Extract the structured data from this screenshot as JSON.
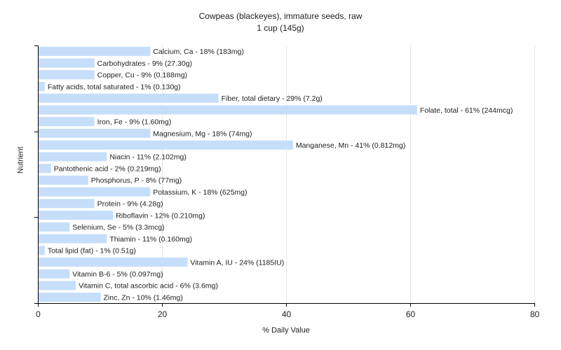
{
  "chart_data": {
    "type": "bar",
    "orientation": "horizontal",
    "title": "Cowpeas (blackeyes), immature seeds, raw",
    "subtitle": "1 cup (145g)",
    "xlabel": "% Daily Value",
    "ylabel": "Nutrient",
    "xlim": [
      0,
      80
    ],
    "xticks": [
      0,
      20,
      40,
      60,
      80
    ],
    "grid": "vertical",
    "bar_color": "#c6defa",
    "bars": [
      {
        "name": "Calcium, Ca",
        "value": 18,
        "label": "Calcium, Ca - 18% (183mg)"
      },
      {
        "name": "Carbohydrates",
        "value": 9,
        "label": "Carbohydrates - 9% (27.30g)"
      },
      {
        "name": "Copper, Cu",
        "value": 9,
        "label": "Copper, Cu - 9% (0.188mg)"
      },
      {
        "name": "Fatty acids, total saturated",
        "value": 1,
        "label": "Fatty acids, total saturated - 1% (0.130g)"
      },
      {
        "name": "Fiber, total dietary",
        "value": 29,
        "label": "Fiber, total dietary - 29% (7.2g)"
      },
      {
        "name": "Folate, total",
        "value": 61,
        "label": "Folate, total - 61% (244mcg)"
      },
      {
        "name": "Iron, Fe",
        "value": 9,
        "label": "Iron, Fe - 9% (1.60mg)"
      },
      {
        "name": "Magnesium, Mg",
        "value": 18,
        "label": "Magnesium, Mg - 18% (74mg)"
      },
      {
        "name": "Manganese, Mn",
        "value": 41,
        "label": "Manganese, Mn - 41% (0.812mg)"
      },
      {
        "name": "Niacin",
        "value": 11,
        "label": "Niacin - 11% (2.102mg)"
      },
      {
        "name": "Pantothenic acid",
        "value": 2,
        "label": "Pantothenic acid - 2% (0.219mg)"
      },
      {
        "name": "Phosphorus, P",
        "value": 8,
        "label": "Phosphorus, P - 8% (77mg)"
      },
      {
        "name": "Potassium, K",
        "value": 18,
        "label": "Potassium, K - 18% (625mg)"
      },
      {
        "name": "Protein",
        "value": 9,
        "label": "Protein - 9% (4.28g)"
      },
      {
        "name": "Riboflavin",
        "value": 12,
        "label": "Riboflavin - 12% (0.210mg)"
      },
      {
        "name": "Selenium, Se",
        "value": 5,
        "label": "Selenium, Se - 5% (3.3mcg)"
      },
      {
        "name": "Thiamin",
        "value": 11,
        "label": "Thiamin - 11% (0.160mg)"
      },
      {
        "name": "Total lipid (fat)",
        "value": 1,
        "label": "Total lipid (fat) - 1% (0.51g)"
      },
      {
        "name": "Vitamin A, IU",
        "value": 24,
        "label": "Vitamin A, IU - 24% (1185IU)"
      },
      {
        "name": "Vitamin B-6",
        "value": 5,
        "label": "Vitamin B-6 - 5% (0.097mg)"
      },
      {
        "name": "Vitamin C, total ascorbic acid",
        "value": 6,
        "label": "Vitamin C, total ascorbic acid - 6% (3.6mg)"
      },
      {
        "name": "Zinc, Zn",
        "value": 10,
        "label": "Zinc, Zn - 10% (1.46mg)"
      }
    ]
  }
}
